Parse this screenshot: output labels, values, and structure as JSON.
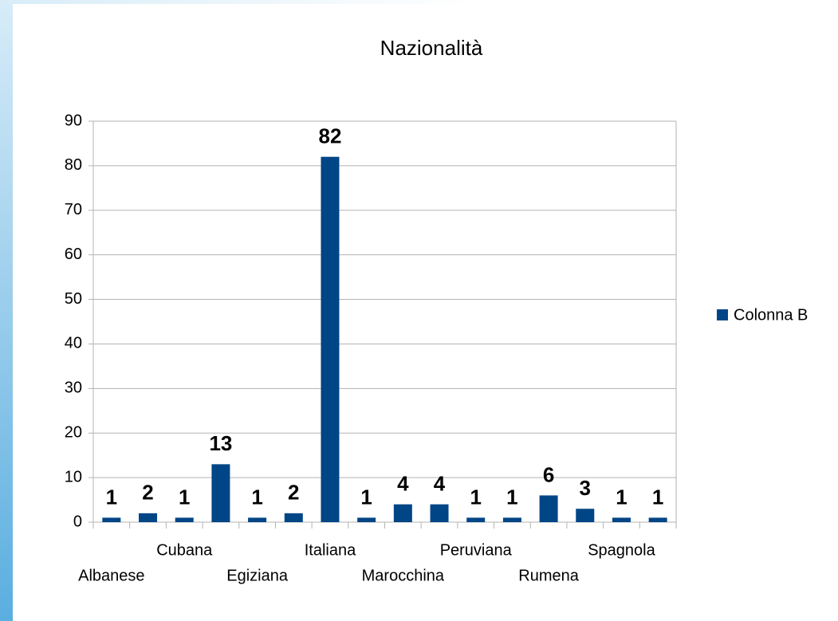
{
  "chart_data": {
    "type": "bar",
    "title": "Nazionalità",
    "categories": [
      "Albanese",
      null,
      "Cubana",
      null,
      "Egiziana",
      null,
      "Italiana",
      null,
      "Marocchina",
      null,
      "Peruviana",
      null,
      "Rumena",
      null,
      "Spagnola",
      null
    ],
    "series": [
      {
        "name": "Colonna B",
        "color": "#004586",
        "values": [
          1,
          2,
          1,
          13,
          1,
          2,
          82,
          1,
          4,
          4,
          1,
          1,
          6,
          3,
          1,
          1
        ]
      }
    ],
    "ylim": [
      0,
      90
    ],
    "yticks": [
      0,
      10,
      20,
      30,
      40,
      50,
      60,
      70,
      80,
      90
    ],
    "grid": true,
    "legend": "right"
  }
}
